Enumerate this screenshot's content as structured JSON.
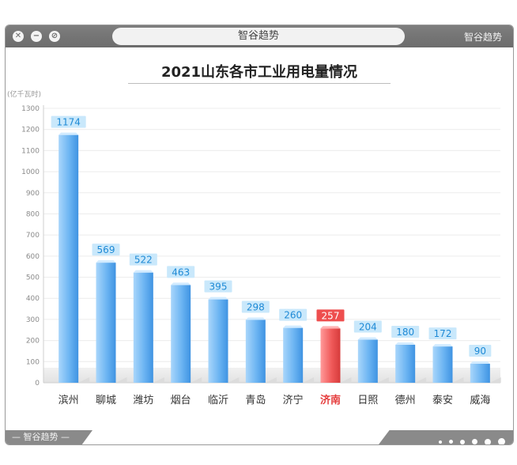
{
  "window": {
    "address_text": "智谷趋势",
    "brand_top_right": "智谷趋势",
    "brand_bottom_left": "智谷趋势",
    "buttons": [
      "close-icon",
      "minimize-icon",
      "block-icon"
    ]
  },
  "chart_data": {
    "type": "bar",
    "title": "2021山东各市工业用电量情况",
    "unit_label": "(亿千瓦时)",
    "ylim": [
      0,
      1300
    ],
    "yticks": [
      0,
      100,
      200,
      300,
      400,
      500,
      600,
      700,
      800,
      900,
      1000,
      1100,
      1200,
      1300
    ],
    "categories": [
      "滨州",
      "聊城",
      "潍坊",
      "烟台",
      "临沂",
      "青岛",
      "济宁",
      "济南",
      "日照",
      "德州",
      "泰安",
      "威海"
    ],
    "values": [
      1174,
      569,
      522,
      463,
      395,
      298,
      260,
      257,
      204,
      180,
      172,
      90
    ],
    "highlight": "济南",
    "colors": {
      "bar": "#5aa9ee",
      "highlight": "#ee4e4e",
      "label_bg": "#c9e8fb",
      "label_text": "#1f8ad6"
    }
  }
}
